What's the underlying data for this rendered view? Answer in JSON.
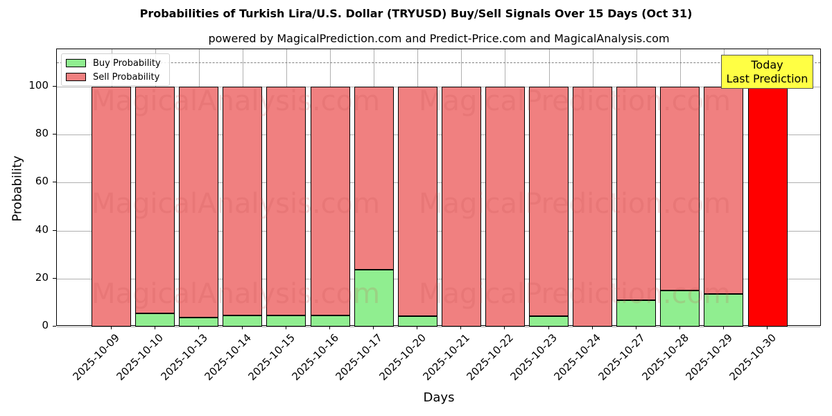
{
  "header": {
    "title": "Probabilities of Turkish Lira/U.S. Dollar (TRYUSD) Buy/Sell Signals Over 15 Days (Oct 31)",
    "subtitle": "powered by MagicalPrediction.com and Predict-Price.com and MagicalAnalysis.com"
  },
  "axes": {
    "xlabel": "Days",
    "ylabel": "Probability",
    "yticks": [
      "0",
      "20",
      "40",
      "60",
      "80",
      "100"
    ]
  },
  "legend": {
    "buy_label": "Buy Probability",
    "sell_label": "Sell Probability"
  },
  "annotation": {
    "line1": "Today",
    "line2": "Last Prediction"
  },
  "watermarks": [
    "MagicalAnalysis.com",
    "MagicalPrediction.com"
  ],
  "colors": {
    "buy": "#90ee90",
    "sell": "#f08080",
    "today": "#ff0000",
    "annotation_bg": "#ffff44"
  },
  "chart_data": {
    "type": "bar",
    "stacked": true,
    "title": "Probabilities of Turkish Lira/U.S. Dollar (TRYUSD) Buy/Sell Signals Over 15 Days (Oct 31)",
    "subtitle": "powered by MagicalPrediction.com and Predict-Price.com and MagicalAnalysis.com",
    "xlabel": "Days",
    "ylabel": "Probability",
    "ylim": [
      0,
      115
    ],
    "yticks": [
      0,
      20,
      40,
      60,
      80,
      100
    ],
    "grid": true,
    "legend_position": "upper left",
    "reference_line": {
      "y": 110,
      "style": "dashed",
      "color": "#808080"
    },
    "categories": [
      "2025-10-09",
      "2025-10-10",
      "2025-10-13",
      "2025-10-14",
      "2025-10-15",
      "2025-10-16",
      "2025-10-17",
      "2025-10-20",
      "2025-10-21",
      "2025-10-22",
      "2025-10-23",
      "2025-10-24",
      "2025-10-27",
      "2025-10-28",
      "2025-10-29",
      "2025-10-30"
    ],
    "series": [
      {
        "name": "Buy Probability",
        "color": "#90ee90",
        "values": [
          0,
          5.5,
          3.8,
          4.6,
          4.6,
          4.6,
          23.7,
          4.3,
          0,
          0,
          4.3,
          0,
          11.0,
          15.0,
          13.6,
          0
        ]
      },
      {
        "name": "Sell Probability",
        "color": "#f08080",
        "values": [
          100,
          94.5,
          96.2,
          95.4,
          95.4,
          95.4,
          76.3,
          95.7,
          100,
          100,
          95.7,
          100,
          89.0,
          85.0,
          86.4,
          100
        ]
      }
    ],
    "highlight": {
      "category": "2025-10-30",
      "color": "#ff0000",
      "label": "Today Last Prediction"
    }
  }
}
